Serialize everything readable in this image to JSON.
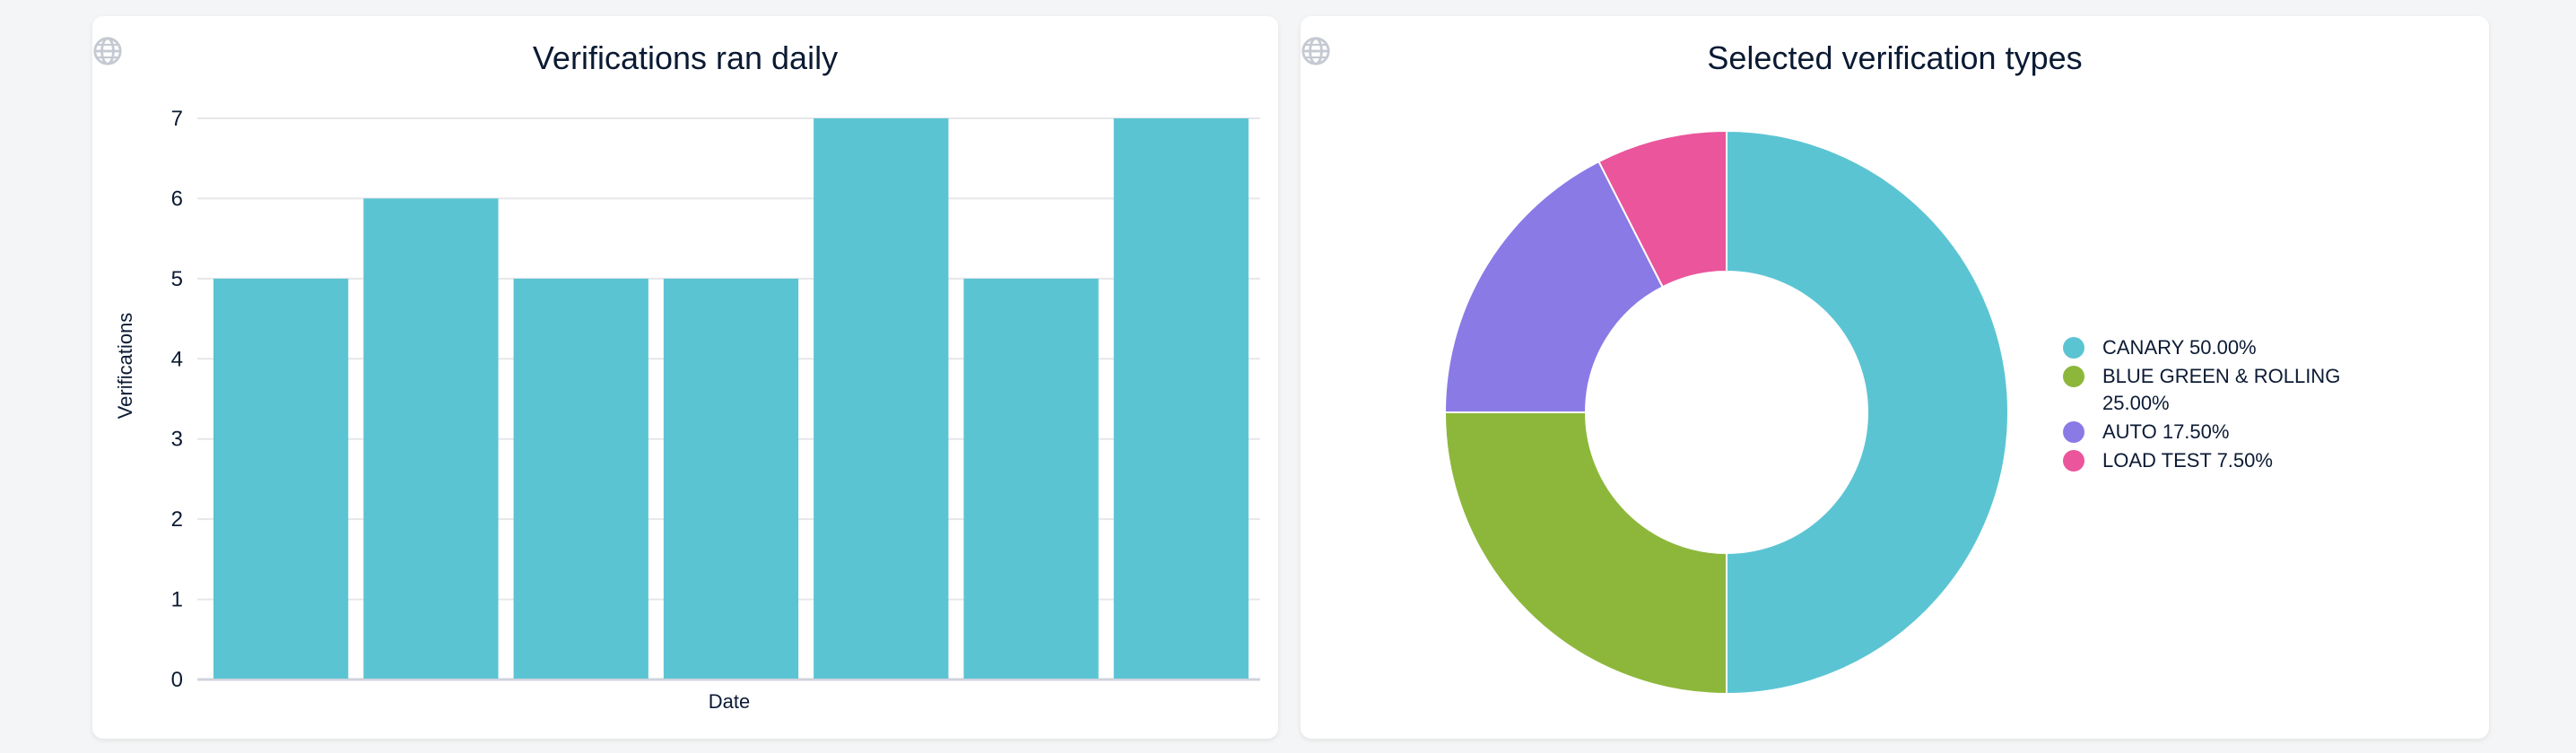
{
  "chart_data": [
    {
      "type": "bar",
      "title": "Verifications ran daily",
      "xlabel": "Date",
      "ylabel": "Verifications",
      "ylim": [
        0,
        7
      ],
      "yticks": [
        "0",
        "1",
        "2",
        "3",
        "4",
        "5",
        "6",
        "7"
      ],
      "grid": true,
      "values": [
        5,
        6,
        5,
        5,
        7,
        5,
        7
      ],
      "color": "#5bc4d3"
    },
    {
      "type": "pie",
      "title": "Selected verification types",
      "donut": true,
      "legend_position": "right",
      "slices": [
        {
          "label": "CANARY 50.00%",
          "value": 50.0,
          "color": "#5bc4d3"
        },
        {
          "label": "BLUE GREEN & ROLLING 25.00%",
          "value": 25.0,
          "color": "#8db73b"
        },
        {
          "label": "AUTO 17.50%",
          "value": 17.5,
          "color": "#8a7ae6"
        },
        {
          "label": "LOAD TEST 7.50%",
          "value": 7.5,
          "color": "#ea559c"
        }
      ]
    }
  ],
  "icons": {
    "card_action": "globe-icon"
  }
}
